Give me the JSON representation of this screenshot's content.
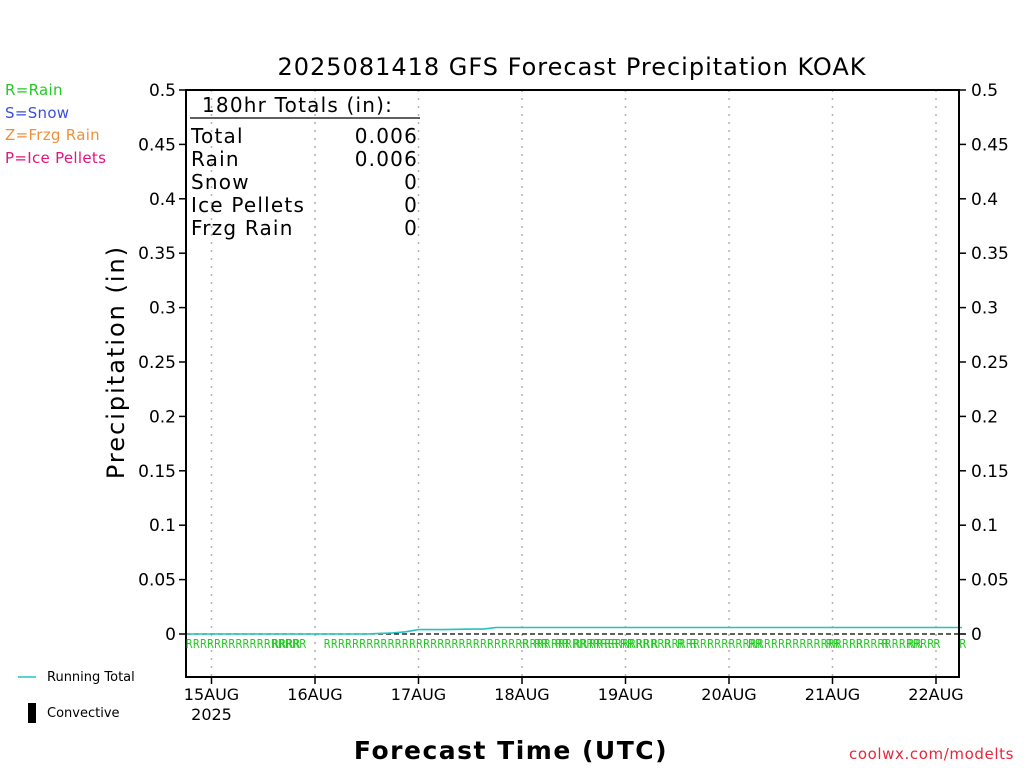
{
  "colors": {
    "rain": "#22c922",
    "snow": "#3a4de0",
    "frzg_rain": "#f0903a",
    "ice_pellets": "#e5137f",
    "running_total": "#22c4c0",
    "convective": "#000000",
    "credit": "#e8263c",
    "grid": "#b4b4b4"
  },
  "type_legend": [
    {
      "label": "R=Rain",
      "color": "#22c922"
    },
    {
      "label": "S=Snow",
      "color": "#3a4de0"
    },
    {
      "label": "Z=Frzg Rain",
      "color": "#f0903a"
    },
    {
      "label": "P=Ice Pellets",
      "color": "#e5137f"
    }
  ],
  "series_legend": {
    "running_total": "Running Total",
    "convective": "Convective"
  },
  "credit": "coolwx.com/modelts",
  "chart_data": {
    "type": "line",
    "title": "2025081418 GFS Forecast Precipitation KOAK",
    "xlabel": "Forecast Time (UTC)",
    "ylabel": "Precipitation (in)",
    "ylim": [
      0,
      0.5
    ],
    "yticks": [
      "0",
      "0.05",
      "0.1",
      "0.15",
      "0.2",
      "0.25",
      "0.3",
      "0.35",
      "0.4",
      "0.45",
      "0.5"
    ],
    "xlim_hours_from_15AUG00Z": [
      -6,
      174
    ],
    "xticks": [
      {
        "label": "15AUG",
        "sub": "2025",
        "hour": 0
      },
      {
        "label": "16AUG",
        "hour": 24
      },
      {
        "label": "17AUG",
        "hour": 48
      },
      {
        "label": "18AUG",
        "hour": 72
      },
      {
        "label": "19AUG",
        "hour": 96
      },
      {
        "label": "20AUG",
        "hour": 120
      },
      {
        "label": "21AUG",
        "hour": 144
      },
      {
        "label": "22AUG",
        "hour": 168
      }
    ],
    "grid": "vertical dotted at day boundaries",
    "series": [
      {
        "name": "Running Total",
        "x": [
          -6,
          30,
          36,
          42,
          45,
          48,
          54,
          60,
          63,
          66,
          69,
          72,
          96,
          120,
          144,
          168,
          174
        ],
        "y": [
          0,
          0,
          0,
          0.001,
          0.002,
          0.004,
          0.004,
          0.0045,
          0.0045,
          0.006,
          0.006,
          0.006,
          0.006,
          0.006,
          0.006,
          0.006,
          0.006
        ]
      }
    ],
    "convective": [],
    "rain_markers": [
      "RRRRRRRRRRRRRRRRR",
      "RRRR",
      "RRRRRRRRRRRRRRRRRRRRRRRRRRRRRRRRRRRRRRRRRRRRRRRRRRRRRRRRRRRRRRRRRRRRRRRRRRRRRRRRRRRRRR",
      "R",
      "RR",
      "RR",
      "RR",
      "RR",
      "RR",
      "RR",
      "RR",
      "R",
      "R",
      "R",
      "R",
      "RR",
      "RR",
      "R",
      "R",
      "RR",
      "R",
      "R"
    ],
    "totals_box": {
      "title": "180hr Totals (in):",
      "rows": [
        {
          "label": "Total",
          "value": "0.006"
        },
        {
          "label": "Rain",
          "value": "0.006"
        },
        {
          "label": "Snow",
          "value": "0"
        },
        {
          "label": "Ice Pellets",
          "value": "0"
        },
        {
          "label": "Frzg Rain",
          "value": "0"
        }
      ]
    }
  }
}
